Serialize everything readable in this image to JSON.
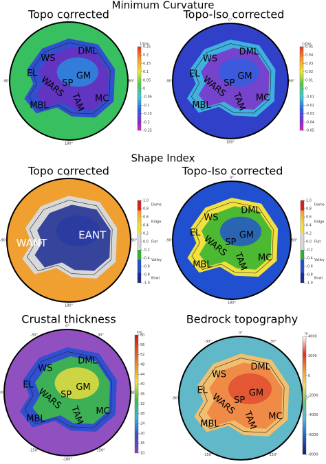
{
  "sections": [
    "Minimum Curvature",
    "Shape Index"
  ],
  "panels": [
    {
      "title": "Topo corrected",
      "regions": [
        "WS",
        "DML",
        "EL",
        "GM",
        "WARS",
        "SP",
        "MBL",
        "TAM",
        "MC"
      ],
      "longitudes": [
        "0°",
        "90°",
        "180°",
        "-90°"
      ],
      "colorbar": {
        "unit": "1/Gm",
        "ticks": [
          "0.25",
          "0.2",
          "0.15",
          "0.1",
          "0.05",
          "0",
          "-0.05",
          "-0.1",
          "-0.15",
          "-0.2",
          "-0.25"
        ]
      }
    },
    {
      "title": "Topo-Iso corrected",
      "regions": [
        "WS",
        "DML",
        "EL",
        "GM",
        "WARS",
        "SP",
        "MBL",
        "TAM",
        "MC"
      ],
      "longitudes": [
        "0°",
        "90°",
        "180°",
        "-90°"
      ],
      "colorbar": {
        "unit": "1/Gm",
        "ticks": [
          "0.05",
          "0.04",
          "0.03",
          "0.02",
          "0.01",
          "0",
          "-0.01",
          "-0.02",
          "-0.03",
          "-0.04",
          "-0.05"
        ]
      }
    },
    {
      "title": "Topo corrected",
      "regions": [
        "WANT",
        "EANT"
      ],
      "longitudes": [
        "0°",
        "90°",
        "180°",
        "-90°"
      ],
      "colorbar": {
        "ticks": [
          "1.0",
          "0.8",
          "0.6",
          "0.4",
          "0.2",
          "0.0",
          "-0.2",
          "-0.4",
          "-0.6",
          "-0.8",
          "-1.0"
        ],
        "classes": [
          "Dome",
          "Ridge",
          "Flat",
          "Valley",
          "Bowl"
        ]
      }
    },
    {
      "title": "Topo-Iso corrected",
      "regions": [
        "WS",
        "DML",
        "EL",
        "GM",
        "WARS",
        "SP",
        "MBL",
        "TAM",
        "MC"
      ],
      "longitudes": [
        "0°",
        "90°",
        "180°",
        "-90°"
      ],
      "colorbar": {
        "ticks": [
          "1.0",
          "0.8",
          "0.6",
          "0.4",
          "0.2",
          "0.0",
          "-0.2",
          "-0.4",
          "-0.6",
          "-0.8",
          "-1.0"
        ],
        "classes": [
          "Dome",
          "Ridge",
          "Flat",
          "Valley",
          "Bowl"
        ]
      }
    },
    {
      "title": "Crustal thickness",
      "regions": [
        "WS",
        "DML",
        "EL",
        "GM",
        "WARS",
        "SP",
        "MBL",
        "TAM",
        "MC"
      ],
      "longitudes": [
        "0°",
        "-30°",
        "30°",
        "-90°",
        "90°",
        "-150°",
        "150°",
        "-180°"
      ],
      "colorbar": {
        "unit": "km",
        "ticks": [
          "60",
          "56",
          "52",
          "48",
          "44",
          "40",
          "36",
          "32",
          "28",
          "24",
          "20",
          "16",
          "10"
        ]
      }
    },
    {
      "title": "Bedrock topography",
      "regions": [
        "WS",
        "DML",
        "EL",
        "GM",
        "WARS",
        "SP",
        "MBL",
        "TAM",
        "MC"
      ],
      "longitudes": [
        "0°",
        "-30°",
        "30°",
        "-90°",
        "90°",
        "-150°",
        "150°",
        "-180°"
      ],
      "colorbar": {
        "unit": "m",
        "ticks": [
          "4000",
          "2000",
          "0",
          "-2000",
          "-4000",
          "-6000",
          "-8000"
        ]
      }
    }
  ]
}
